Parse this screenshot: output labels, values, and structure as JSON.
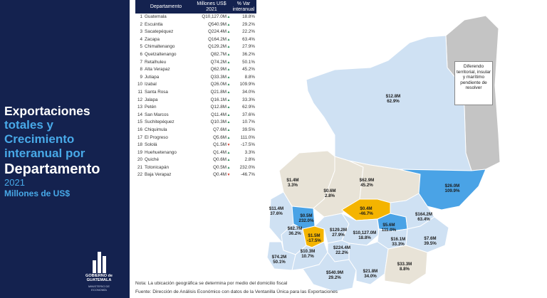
{
  "title": {
    "line1": "Exportaciones",
    "line2": "totales y",
    "line3": "Crecimiento",
    "line4": "interanual por",
    "line5": "Departamento",
    "year": "2021",
    "units": "Millones de US$"
  },
  "logo": {
    "line1": "GOBIERNO de",
    "line2": "GUATEMALA",
    "sub": "MINISTERIO DE ECONOMÍA"
  },
  "table": {
    "headers": {
      "departamento": "Departamento",
      "millones": "Millones US$ 2021",
      "var": "% Var interanual"
    },
    "rows": [
      {
        "rank": "1",
        "name": "Guatemala",
        "value": "Q10,127.0M",
        "pct": "18.8%",
        "trend": "up"
      },
      {
        "rank": "2",
        "name": "Escuintla",
        "value": "Q540.9M",
        "pct": "29.2%",
        "trend": "up"
      },
      {
        "rank": "3",
        "name": "Sacatepéquez",
        "value": "Q224.4M",
        "pct": "22.2%",
        "trend": "up"
      },
      {
        "rank": "4",
        "name": "Zacapa",
        "value": "Q164.2M",
        "pct": "63.4%",
        "trend": "up"
      },
      {
        "rank": "5",
        "name": "Chimaltenango",
        "value": "Q129.2M",
        "pct": "27.9%",
        "trend": "up"
      },
      {
        "rank": "6",
        "name": "Quetzaltenango",
        "value": "Q82.7M",
        "pct": "36.2%",
        "trend": "up"
      },
      {
        "rank": "7",
        "name": "Retalhuleu",
        "value": "Q74.2M",
        "pct": "50.1%",
        "trend": "up"
      },
      {
        "rank": "8",
        "name": "Alta Verapaz",
        "value": "Q62.9M",
        "pct": "45.2%",
        "trend": "up"
      },
      {
        "rank": "9",
        "name": "Jutiapa",
        "value": "Q33.3M",
        "pct": "8.8%",
        "trend": "up"
      },
      {
        "rank": "10",
        "name": "Izabal",
        "value": "Q26.0M",
        "pct": "109.9%",
        "trend": "up"
      },
      {
        "rank": "11",
        "name": "Santa Rosa",
        "value": "Q21.8M",
        "pct": "34.0%",
        "trend": "up"
      },
      {
        "rank": "12",
        "name": "Jalapa",
        "value": "Q16.1M",
        "pct": "33.3%",
        "trend": "up"
      },
      {
        "rank": "13",
        "name": "Petén",
        "value": "Q12.8M",
        "pct": "62.9%",
        "trend": "up"
      },
      {
        "rank": "14",
        "name": "San Marcos",
        "value": "Q11.4M",
        "pct": "37.6%",
        "trend": "up"
      },
      {
        "rank": "15",
        "name": "Suchitepéquez",
        "value": "Q10.3M",
        "pct": "10.7%",
        "trend": "up"
      },
      {
        "rank": "16",
        "name": "Chiquimula",
        "value": "Q7.6M",
        "pct": "39.5%",
        "trend": "up"
      },
      {
        "rank": "17",
        "name": "El Progreso",
        "value": "Q5.6M",
        "pct": "111.0%",
        "trend": "up"
      },
      {
        "rank": "18",
        "name": "Sololá",
        "value": "Q1.5M",
        "pct": "-17.5%",
        "trend": "down"
      },
      {
        "rank": "19",
        "name": "Huehuetenango",
        "value": "Q1.4M",
        "pct": "3.3%",
        "trend": "up"
      },
      {
        "rank": "20",
        "name": "Quiché",
        "value": "Q0.6M",
        "pct": "2.8%",
        "trend": "up"
      },
      {
        "rank": "21",
        "name": "Totonicapán",
        "value": "Q0.5M",
        "pct": "232.0%",
        "trend": "up"
      },
      {
        "rank": "22",
        "name": "Baja Verapaz",
        "value": "Q0.4M",
        "pct": "-46.7%",
        "trend": "down"
      }
    ]
  },
  "map": {
    "dispute_label": "Diferendo territorial, insular y marítimo pendiente de resolver",
    "labels": [
      {
        "id": "peten",
        "value": "$12.8M",
        "pct": "62.9%"
      },
      {
        "id": "izabal",
        "value": "$26.0M",
        "pct": "109.9%"
      },
      {
        "id": "alta-verapaz",
        "value": "$62.9M",
        "pct": "45.2%"
      },
      {
        "id": "huehuetenango",
        "value": "$1.4M",
        "pct": "3.3%"
      },
      {
        "id": "quiche",
        "value": "$0.6M",
        "pct": "2.8%"
      },
      {
        "id": "baja-verapaz",
        "value": "$0.4M",
        "pct": "-46.7%"
      },
      {
        "id": "san-marcos",
        "value": "$11.4M",
        "pct": "37.6%"
      },
      {
        "id": "totonicapan",
        "value": "$0.5M",
        "pct": "232.0%"
      },
      {
        "id": "quetzaltenango",
        "value": "$82.7M",
        "pct": "36.2%"
      },
      {
        "id": "solola",
        "value": "$1.5M",
        "pct": "-17.5%"
      },
      {
        "id": "chimaltenango",
        "value": "$129.2M",
        "pct": "27.9%"
      },
      {
        "id": "guatemala",
        "value": "$10,127.0M",
        "pct": "18.8%"
      },
      {
        "id": "el-progreso",
        "value": "$5.6M",
        "pct": "111.0%"
      },
      {
        "id": "zacapa",
        "value": "$164.2M",
        "pct": "63.4%"
      },
      {
        "id": "jalapa",
        "value": "$16.1M",
        "pct": "33.3%"
      },
      {
        "id": "chiquimula",
        "value": "$7.6M",
        "pct": "39.5%"
      },
      {
        "id": "sacatepequez",
        "value": "$224.4M",
        "pct": "22.2%"
      },
      {
        "id": "retalhuleu",
        "value": "$74.2M",
        "pct": "50.1%"
      },
      {
        "id": "suchitepequez",
        "value": "$10.3M",
        "pct": "10.7%"
      },
      {
        "id": "escuintla",
        "value": "$540.9M",
        "pct": "29.2%"
      },
      {
        "id": "santa-rosa",
        "value": "$21.8M",
        "pct": "34.0%"
      },
      {
        "id": "jutiapa",
        "value": "$33.3M",
        "pct": "8.8%"
      }
    ]
  },
  "notes": {
    "note": "Nota: La ubicación geográfica se determina por medio del domicilio fiscal",
    "source": "Fuente: Dirección de Análisis Económico con datos de la Ventanilla Única para las Exportaciones"
  },
  "colors": {
    "panel": "#14224f",
    "accent": "#48a9e8",
    "positive": "#2e8b57",
    "negative": "#d23a2a",
    "light_blue": "#cfe1f3",
    "mid_blue": "#8ec1ea",
    "bright_blue": "#4aa3e6",
    "orange": "#f4b400",
    "beige": "#e8e3d7",
    "gray": "#c4c4c4"
  }
}
